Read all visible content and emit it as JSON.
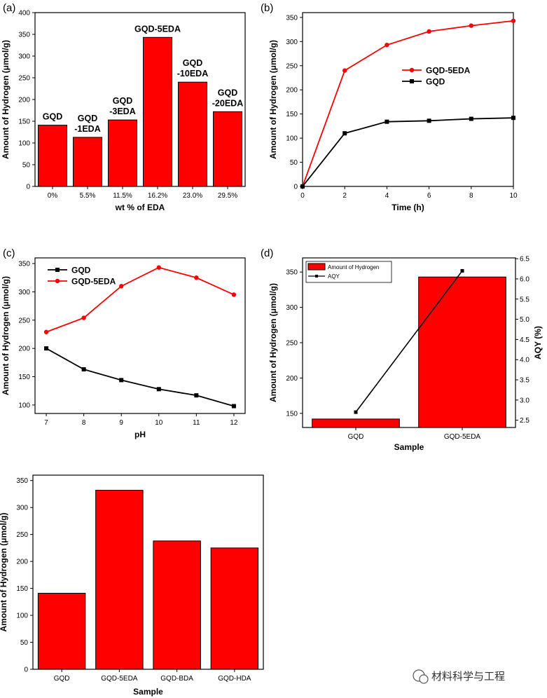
{
  "colors": {
    "red": "#ff0000",
    "black": "#000000"
  },
  "chart_data": [
    {
      "id": "a",
      "panel_label": "(a)",
      "type": "bar",
      "title": "",
      "categories": [
        "0%",
        "5.5%",
        "11.5%",
        "16.2%",
        "23.0%",
        "29.5%"
      ],
      "values": [
        141,
        113,
        153,
        343,
        240,
        172
      ],
      "bar_labels": [
        [
          "GQD"
        ],
        [
          "GQD",
          "-1EDA"
        ],
        [
          "GQD",
          "-3EDA"
        ],
        [
          "GQD-5EDA"
        ],
        [
          "GQD",
          "-10EDA"
        ],
        [
          "GQD",
          "-20EDA"
        ]
      ],
      "xlabel": "wt % of EDA",
      "ylabel": "Amount of Hydrogen (μmol/g)",
      "ylim": [
        0,
        400
      ],
      "yticks": [
        0,
        50,
        100,
        150,
        200,
        250,
        300,
        350,
        400
      ]
    },
    {
      "id": "b",
      "panel_label": "(b)",
      "type": "line",
      "x": [
        0,
        2,
        4,
        6,
        8,
        10
      ],
      "series": [
        {
          "name": "GQD-5EDA",
          "color": "#ff0000",
          "values": [
            0,
            240,
            293,
            321,
            333,
            343
          ]
        },
        {
          "name": "GQD",
          "color": "#000000",
          "values": [
            0,
            110,
            134,
            136,
            140,
            142
          ]
        }
      ],
      "xlabel": "Time (h)",
      "ylabel": "Amount of Hydrogen (μmol/g)",
      "xlim": [
        0,
        10
      ],
      "ylim": [
        0,
        360
      ],
      "xticks": [
        0,
        2,
        4,
        6,
        8,
        10
      ],
      "yticks": [
        0,
        50,
        100,
        150,
        200,
        250,
        300,
        350
      ],
      "legend": "center-right"
    },
    {
      "id": "c",
      "panel_label": "(c)",
      "type": "line",
      "x": [
        7,
        8,
        9,
        10,
        11,
        12
      ],
      "series": [
        {
          "name": "GQD",
          "color": "#000000",
          "values": [
            200,
            163,
            144,
            128,
            117,
            98
          ]
        },
        {
          "name": "GQD-5EDA",
          "color": "#ff0000",
          "values": [
            229,
            254,
            310,
            343,
            325,
            295
          ]
        }
      ],
      "xlabel": "pH",
      "ylabel": "Amount of Hydrogen (μmol/g)",
      "xlim": [
        6.7,
        12.3
      ],
      "ylim": [
        85,
        360
      ],
      "xticks": [
        7,
        8,
        9,
        10,
        11,
        12
      ],
      "yticks": [
        100,
        150,
        200,
        250,
        300,
        350
      ],
      "legend": "top-left"
    },
    {
      "id": "d",
      "panel_label": "(d)",
      "type": "bar+line",
      "categories": [
        "GQD",
        "GQD-5EDA"
      ],
      "bar_series": {
        "name": "Amount of Hydrogen",
        "values": [
          142,
          343
        ]
      },
      "line_series": {
        "name": "AQY",
        "values": [
          2.7,
          6.2
        ]
      },
      "xlabel": "Sample",
      "ylabel": "Amount of Hydrogen (μmol/g)",
      "y2label": "AQY (%)",
      "ylim": [
        130,
        370
      ],
      "yticks": [
        150,
        200,
        250,
        300,
        350
      ],
      "y2lim": [
        2.32,
        6.52
      ],
      "y2ticks": [
        2.5,
        3.0,
        3.5,
        4.0,
        4.5,
        5.0,
        5.5,
        6.0,
        6.5
      ],
      "y2ticklabels": [
        "2.5",
        "3.0",
        "3.5",
        "4.0",
        "4.5",
        "5.0",
        "5.5",
        "6.0",
        "6.5"
      ],
      "legend": "top-left"
    },
    {
      "id": "e",
      "panel_label": "",
      "type": "bar",
      "categories": [
        "GQD",
        "GQD-5EDA",
        "GQD-BDA",
        "GQD-HDA"
      ],
      "values": [
        141,
        332,
        238,
        225
      ],
      "xlabel": "Sample",
      "ylabel": "Amount of Hydrogen (μmol/g)",
      "ylim": [
        0,
        360
      ],
      "yticks": [
        0,
        50,
        100,
        150,
        200,
        250,
        300,
        350
      ]
    }
  ],
  "watermark": {
    "text": "材料科学与工程"
  }
}
